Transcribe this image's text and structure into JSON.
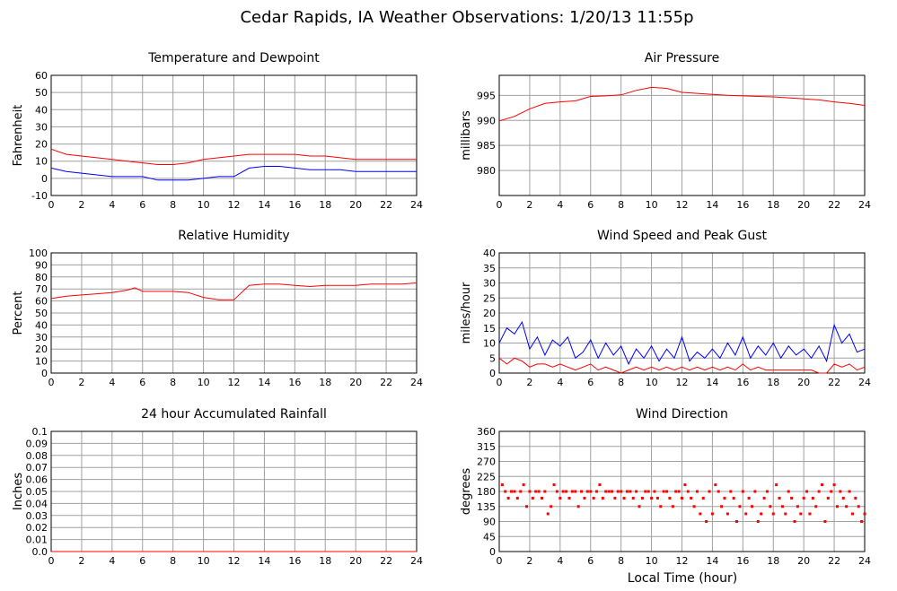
{
  "figure": {
    "title": "Cedar Rapids, IA Weather Observations: 1/20/13 11:55p",
    "x_axis_title": "Local Time (hour)"
  },
  "chart_data": [
    {
      "type": "line",
      "title": "Temperature and Dewpoint",
      "xlabel": "",
      "ylabel": "Fahrenheit",
      "xlim": [
        0,
        24
      ],
      "ylim": [
        -10,
        60
      ],
      "xticks": [
        0,
        2,
        4,
        6,
        8,
        10,
        12,
        14,
        16,
        18,
        20,
        22,
        24
      ],
      "yticks": [
        -10,
        0,
        10,
        20,
        30,
        40,
        50,
        60
      ],
      "grid": true,
      "x": [
        0,
        1,
        2,
        3,
        4,
        5,
        6,
        7,
        8,
        9,
        10,
        11,
        12,
        13,
        14,
        15,
        16,
        17,
        18,
        19,
        20,
        21,
        22,
        23,
        24
      ],
      "series": [
        {
          "color": "#ff0000",
          "values": [
            17,
            14,
            13,
            12,
            11,
            10,
            9,
            8,
            8,
            9,
            11,
            12,
            13,
            14,
            14,
            14,
            14,
            13,
            13,
            12,
            11,
            11,
            11,
            11,
            11
          ]
        },
        {
          "color": "#0000ff",
          "values": [
            6,
            4,
            3,
            2,
            1,
            1,
            1,
            -1,
            -1,
            -1,
            0,
            1,
            1,
            6,
            7,
            7,
            6,
            5,
            5,
            5,
            4,
            4,
            4,
            4,
            4
          ]
        }
      ]
    },
    {
      "type": "line",
      "title": "Air Pressure",
      "xlabel": "",
      "ylabel": "millibars",
      "xlim": [
        0,
        24
      ],
      "ylim": [
        975,
        999
      ],
      "xticks": [
        0,
        2,
        4,
        6,
        8,
        10,
        12,
        14,
        16,
        18,
        20,
        22,
        24
      ],
      "yticks": [
        980,
        985,
        990,
        995
      ],
      "grid": true,
      "x": [
        0,
        1,
        2,
        3,
        4,
        5,
        6,
        7,
        8,
        9,
        10,
        11,
        12,
        13,
        14,
        15,
        16,
        17,
        18,
        19,
        20,
        21,
        22,
        23,
        24
      ],
      "series": [
        {
          "color": "#ff0000",
          "values": [
            989.9,
            990.8,
            992.3,
            993.4,
            993.7,
            993.9,
            994.8,
            994.9,
            995.1,
            996.0,
            996.6,
            996.4,
            995.6,
            995.4,
            995.2,
            995.0,
            994.9,
            994.8,
            994.7,
            994.5,
            994.3,
            994.1,
            993.7,
            993.4,
            993.0
          ]
        }
      ]
    },
    {
      "type": "line",
      "title": "Relative Humidity",
      "xlabel": "",
      "ylabel": "Percent",
      "xlim": [
        0,
        24
      ],
      "ylim": [
        0,
        100
      ],
      "xticks": [
        0,
        2,
        4,
        6,
        8,
        10,
        12,
        14,
        16,
        18,
        20,
        22,
        24
      ],
      "yticks": [
        0,
        10,
        20,
        30,
        40,
        50,
        60,
        70,
        80,
        90,
        100
      ],
      "grid": true,
      "x": [
        0,
        1,
        2,
        3,
        4,
        5,
        5.5,
        6,
        7,
        8,
        9,
        10,
        11,
        12,
        12.5,
        13,
        14,
        15,
        16,
        17,
        18,
        19,
        20,
        21,
        22,
        23,
        24
      ],
      "series": [
        {
          "color": "#ff0000",
          "values": [
            62,
            64,
            65,
            66,
            67,
            69,
            71,
            68,
            68,
            68,
            67,
            63,
            61,
            61,
            67,
            73,
            74,
            74,
            73,
            72,
            73,
            73,
            73,
            74,
            74,
            74,
            75
          ]
        }
      ]
    },
    {
      "type": "line",
      "title": "Wind Speed and Peak Gust",
      "xlabel": "",
      "ylabel": "miles/hour",
      "xlim": [
        0,
        24
      ],
      "ylim": [
        0,
        40
      ],
      "xticks": [
        0,
        2,
        4,
        6,
        8,
        10,
        12,
        14,
        16,
        18,
        20,
        22,
        24
      ],
      "yticks": [
        0,
        5,
        10,
        15,
        20,
        25,
        30,
        35,
        40
      ],
      "grid": true,
      "x": [
        0,
        0.5,
        1,
        1.5,
        2,
        2.5,
        3,
        3.5,
        4,
        4.5,
        5,
        5.5,
        6,
        6.5,
        7,
        7.5,
        8,
        8.5,
        9,
        9.5,
        10,
        10.5,
        11,
        11.5,
        12,
        12.5,
        13,
        13.5,
        14,
        14.5,
        15,
        15.5,
        16,
        16.5,
        17,
        17.5,
        18,
        18.5,
        19,
        19.5,
        20,
        20.5,
        21,
        21.5,
        22,
        22.5,
        23,
        23.5,
        24
      ],
      "series": [
        {
          "color": "#0000ff",
          "values": [
            10,
            15,
            13,
            17,
            8,
            12,
            6,
            11,
            9,
            12,
            5,
            7,
            11,
            5,
            10,
            6,
            9,
            3,
            8,
            5,
            9,
            4,
            8,
            5,
            12,
            4,
            7,
            5,
            8,
            5,
            10,
            6,
            12,
            5,
            9,
            6,
            10,
            5,
            9,
            6,
            8,
            5,
            9,
            4,
            16,
            10,
            13,
            7,
            8
          ]
        },
        {
          "color": "#ff0000",
          "values": [
            5,
            3,
            5,
            4,
            2,
            3,
            3,
            2,
            3,
            2,
            1,
            2,
            3,
            1,
            2,
            1,
            0,
            1,
            2,
            1,
            2,
            1,
            2,
            1,
            2,
            1,
            2,
            1,
            2,
            1,
            2,
            1,
            3,
            1,
            2,
            1,
            1,
            1,
            1,
            1,
            1,
            1,
            0,
            0,
            3,
            2,
            3,
            1,
            2
          ]
        }
      ]
    },
    {
      "type": "line",
      "title": "24 hour Accumulated Rainfall",
      "xlabel": "",
      "ylabel": "Inches",
      "xlim": [
        0,
        24
      ],
      "ylim": [
        0,
        0.1
      ],
      "xticks": [
        0,
        2,
        4,
        6,
        8,
        10,
        12,
        14,
        16,
        18,
        20,
        22,
        24
      ],
      "yticks": [
        0.0,
        0.01,
        0.02,
        0.03,
        0.04,
        0.05,
        0.06,
        0.07,
        0.08,
        0.09,
        0.1
      ],
      "ytick_labels": [
        "0.0",
        "0.01",
        "0.02",
        "0.03",
        "0.04",
        "0.05",
        "0.06",
        "0.07",
        "0.08",
        "0.09",
        "0.1"
      ],
      "grid": true,
      "x": [
        0,
        24
      ],
      "series": [
        {
          "color": "#ff0000",
          "values": [
            0,
            0
          ]
        }
      ]
    },
    {
      "type": "scatter",
      "title": "Wind Direction",
      "xlabel": "Local Time (hour)",
      "ylabel": "degrees",
      "xlim": [
        0,
        24
      ],
      "ylim": [
        0,
        360
      ],
      "xticks": [
        0,
        2,
        4,
        6,
        8,
        10,
        12,
        14,
        16,
        18,
        20,
        22,
        24
      ],
      "yticks": [
        0,
        45,
        90,
        135,
        180,
        225,
        270,
        315,
        360
      ],
      "grid": true,
      "series": [
        {
          "color": "#ff0000",
          "x": [
            0.2,
            0.4,
            0.6,
            0.8,
            1.0,
            1.2,
            1.4,
            1.6,
            1.8,
            2.0,
            2.2,
            2.4,
            2.6,
            2.8,
            3.0,
            3.2,
            3.4,
            3.6,
            3.8,
            4.0,
            4.2,
            4.4,
            4.6,
            4.8,
            5.0,
            5.2,
            5.4,
            5.6,
            5.8,
            6.0,
            6.2,
            6.4,
            6.6,
            6.8,
            7.0,
            7.2,
            7.4,
            7.6,
            7.8,
            8.0,
            8.2,
            8.4,
            8.6,
            8.8,
            9.0,
            9.2,
            9.4,
            9.6,
            9.8,
            10.0,
            10.2,
            10.4,
            10.6,
            10.8,
            11.0,
            11.2,
            11.4,
            11.6,
            11.8,
            12.0,
            12.2,
            12.4,
            12.6,
            12.8,
            13.0,
            13.2,
            13.4,
            13.6,
            13.8,
            14.0,
            14.2,
            14.4,
            14.6,
            14.8,
            15.0,
            15.2,
            15.4,
            15.6,
            15.8,
            16.0,
            16.2,
            16.4,
            16.6,
            16.8,
            17.0,
            17.2,
            17.4,
            17.6,
            17.8,
            18.0,
            18.2,
            18.4,
            18.6,
            18.8,
            19.0,
            19.2,
            19.4,
            19.6,
            19.8,
            20.0,
            20.2,
            20.4,
            20.6,
            20.8,
            21.0,
            21.2,
            21.4,
            21.6,
            21.8,
            22.0,
            22.2,
            22.4,
            22.6,
            22.8,
            23.0,
            23.2,
            23.4,
            23.6,
            23.8,
            24.0
          ],
          "values": [
            200,
            180,
            160,
            180,
            180,
            160,
            180,
            200,
            135,
            180,
            160,
            180,
            180,
            160,
            180,
            113,
            135,
            200,
            180,
            160,
            180,
            180,
            160,
            180,
            180,
            135,
            180,
            160,
            180,
            180,
            160,
            180,
            200,
            160,
            180,
            180,
            180,
            160,
            180,
            180,
            160,
            180,
            180,
            160,
            180,
            135,
            160,
            180,
            180,
            160,
            180,
            160,
            135,
            180,
            180,
            160,
            135,
            180,
            180,
            160,
            200,
            180,
            160,
            135,
            180,
            113,
            160,
            90,
            180,
            113,
            200,
            180,
            135,
            160,
            113,
            180,
            160,
            90,
            135,
            180,
            113,
            160,
            135,
            180,
            90,
            113,
            160,
            180,
            135,
            113,
            200,
            160,
            135,
            113,
            180,
            160,
            90,
            135,
            113,
            160,
            180,
            113,
            160,
            135,
            180,
            200,
            90,
            160,
            180,
            200,
            135,
            180,
            160,
            135,
            180,
            113,
            160,
            135,
            90,
            113
          ]
        }
      ]
    }
  ]
}
